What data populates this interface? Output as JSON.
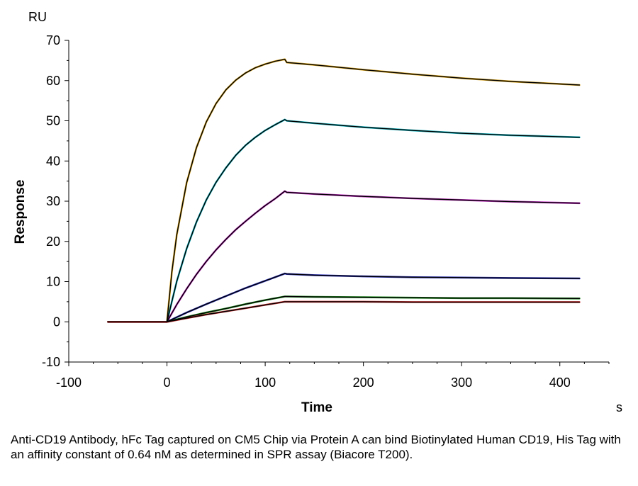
{
  "chart_data": {
    "type": "line",
    "title": "",
    "xlabel": "Time",
    "ylabel": "Response",
    "x_unit": "s",
    "y_unit": "RU",
    "xlim": [
      -100,
      450
    ],
    "ylim": [
      -10,
      70
    ],
    "x_ticks": [
      -100,
      0,
      100,
      200,
      300,
      400
    ],
    "y_ticks": [
      -10,
      0,
      10,
      20,
      30,
      40,
      50,
      60,
      70
    ],
    "x_minor_step": 25,
    "y_minor_step": 5,
    "grid": false,
    "legend": "none",
    "association_end": 120,
    "series": [
      {
        "color": "#d9a520",
        "x": [
          -60,
          0,
          5,
          10,
          20,
          30,
          40,
          50,
          60,
          70,
          80,
          90,
          100,
          110,
          120,
          122,
          150,
          200,
          250,
          300,
          350,
          420
        ],
        "y": [
          0,
          0,
          12.5,
          21.7,
          34.6,
          43.3,
          49.7,
          54.3,
          57.7,
          60.1,
          61.9,
          63.2,
          64.1,
          64.8,
          65.3,
          64.5,
          63.9,
          62.7,
          61.6,
          60.6,
          59.8,
          58.9
        ]
      },
      {
        "color": "#17b8c4",
        "x": [
          -60,
          0,
          10,
          20,
          30,
          40,
          50,
          60,
          70,
          80,
          90,
          100,
          110,
          120,
          122,
          150,
          200,
          250,
          300,
          350,
          420
        ],
        "y": [
          0,
          0,
          10.1,
          18.2,
          24.8,
          30.3,
          34.7,
          38.3,
          41.4,
          43.9,
          45.9,
          47.6,
          49,
          50.3,
          50,
          49.4,
          48.4,
          47.6,
          46.9,
          46.4,
          45.9
        ]
      },
      {
        "color": "#c02fc0",
        "x": [
          -60,
          0,
          10,
          20,
          30,
          40,
          50,
          60,
          70,
          80,
          90,
          100,
          110,
          120,
          122,
          150,
          200,
          250,
          300,
          350,
          420
        ],
        "y": [
          0,
          0,
          4.3,
          8.2,
          11.8,
          15,
          17.9,
          20.5,
          22.9,
          25,
          27,
          28.9,
          30.6,
          32.5,
          32.2,
          31.8,
          31.2,
          30.7,
          30.3,
          29.9,
          29.5
        ]
      },
      {
        "color": "#2a2fb8",
        "x": [
          -60,
          0,
          20,
          40,
          60,
          80,
          100,
          120,
          122,
          150,
          200,
          250,
          300,
          350,
          420
        ],
        "y": [
          0,
          0,
          2.3,
          4.4,
          6.4,
          8.4,
          10.2,
          12,
          11.9,
          11.6,
          11.3,
          11.1,
          11,
          10.9,
          10.8
        ]
      },
      {
        "color": "#1f8a1f",
        "x": [
          -60,
          0,
          20,
          40,
          60,
          80,
          100,
          120,
          122,
          150,
          200,
          250,
          300,
          350,
          420
        ],
        "y": [
          0,
          0,
          1.2,
          2.3,
          3.3,
          4.4,
          5.4,
          6.3,
          6.3,
          6.2,
          6.1,
          6,
          5.9,
          5.9,
          5.8
        ]
      },
      {
        "color": "#d03030",
        "x": [
          -60,
          0,
          20,
          40,
          60,
          80,
          100,
          120,
          122,
          150,
          200,
          250,
          300,
          350,
          420
        ],
        "y": [
          0,
          0,
          0.9,
          1.8,
          2.6,
          3.4,
          4.2,
          5,
          5,
          5,
          5,
          4.9,
          4.9,
          4.9,
          4.9
        ]
      }
    ]
  },
  "caption": "Anti-CD19 Antibody, hFc Tag captured on CM5 Chip via Protein A can bind Biotinylated Human CD19, His Tag with an affinity constant of 0.64 nM as determined in SPR assay (Biacore T200)."
}
